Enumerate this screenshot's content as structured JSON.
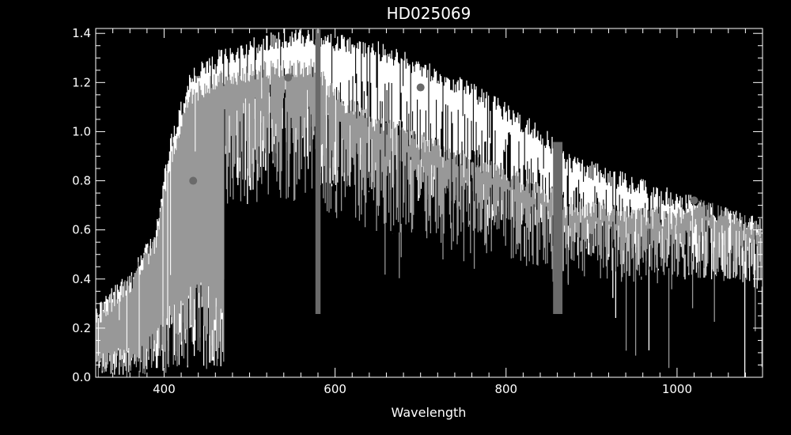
{
  "chart_data": {
    "type": "line",
    "title": "HD025069",
    "xlabel": "Wavelength",
    "ylabel": "",
    "xlim": [
      320,
      1100
    ],
    "ylim": [
      0.0,
      1.42
    ],
    "x_ticks": [
      400,
      600,
      800,
      1000
    ],
    "y_ticks": [
      0.0,
      0.2,
      0.4,
      0.6,
      0.8,
      1.0,
      1.2,
      1.4
    ],
    "x_tick_labels": [
      "400",
      "600",
      "800",
      "1000"
    ],
    "y_tick_labels": [
      "0.0",
      "0.2",
      "0.4",
      "0.6",
      "0.8",
      "1.0",
      "1.2",
      "1.4"
    ],
    "grid": false,
    "colors": {
      "background": "#000000",
      "axes": "#ffffff",
      "spectrum_white": "#ffffff",
      "spectrum_gray": "#989898",
      "bands_dark": "#6a6a6a",
      "markers": "#6a6a6a"
    },
    "series": [
      {
        "color": "#ffffff",
        "x": [
          320,
          360,
          390,
          405,
          430,
          460,
          500,
          540,
          575,
          600,
          650,
          700,
          750,
          800,
          850,
          870,
          900,
          950,
          1000,
          1020,
          1050,
          1100
        ],
        "y": [
          0.3,
          0.45,
          0.6,
          0.95,
          1.25,
          1.33,
          1.38,
          1.42,
          1.42,
          1.4,
          1.37,
          1.3,
          1.22,
          1.12,
          1.0,
          0.92,
          0.88,
          0.82,
          0.76,
          0.74,
          0.7,
          0.65
        ]
      },
      {
        "color": "#989898",
        "x": [
          320,
          360,
          390,
          405,
          430,
          460,
          500,
          540,
          575,
          600,
          650,
          700,
          750,
          800,
          850,
          870,
          900,
          950,
          1000,
          1020,
          1050,
          1100
        ],
        "y": [
          0.28,
          0.42,
          0.58,
          0.9,
          1.18,
          1.25,
          1.28,
          1.3,
          1.3,
          1.18,
          1.07,
          1.0,
          0.93,
          0.86,
          0.78,
          0.74,
          0.72,
          0.7,
          0.69,
          0.74,
          0.7,
          0.64
        ]
      }
    ],
    "points": [
      {
        "x": 434,
        "y": 0.8
      },
      {
        "x": 545,
        "y": 1.22
      },
      {
        "x": 700,
        "y": 1.18
      },
      {
        "x": 1020,
        "y": 0.72
      }
    ],
    "bands": [
      {
        "from": 577,
        "to": 583
      },
      {
        "from": 855,
        "to": 866
      }
    ]
  }
}
